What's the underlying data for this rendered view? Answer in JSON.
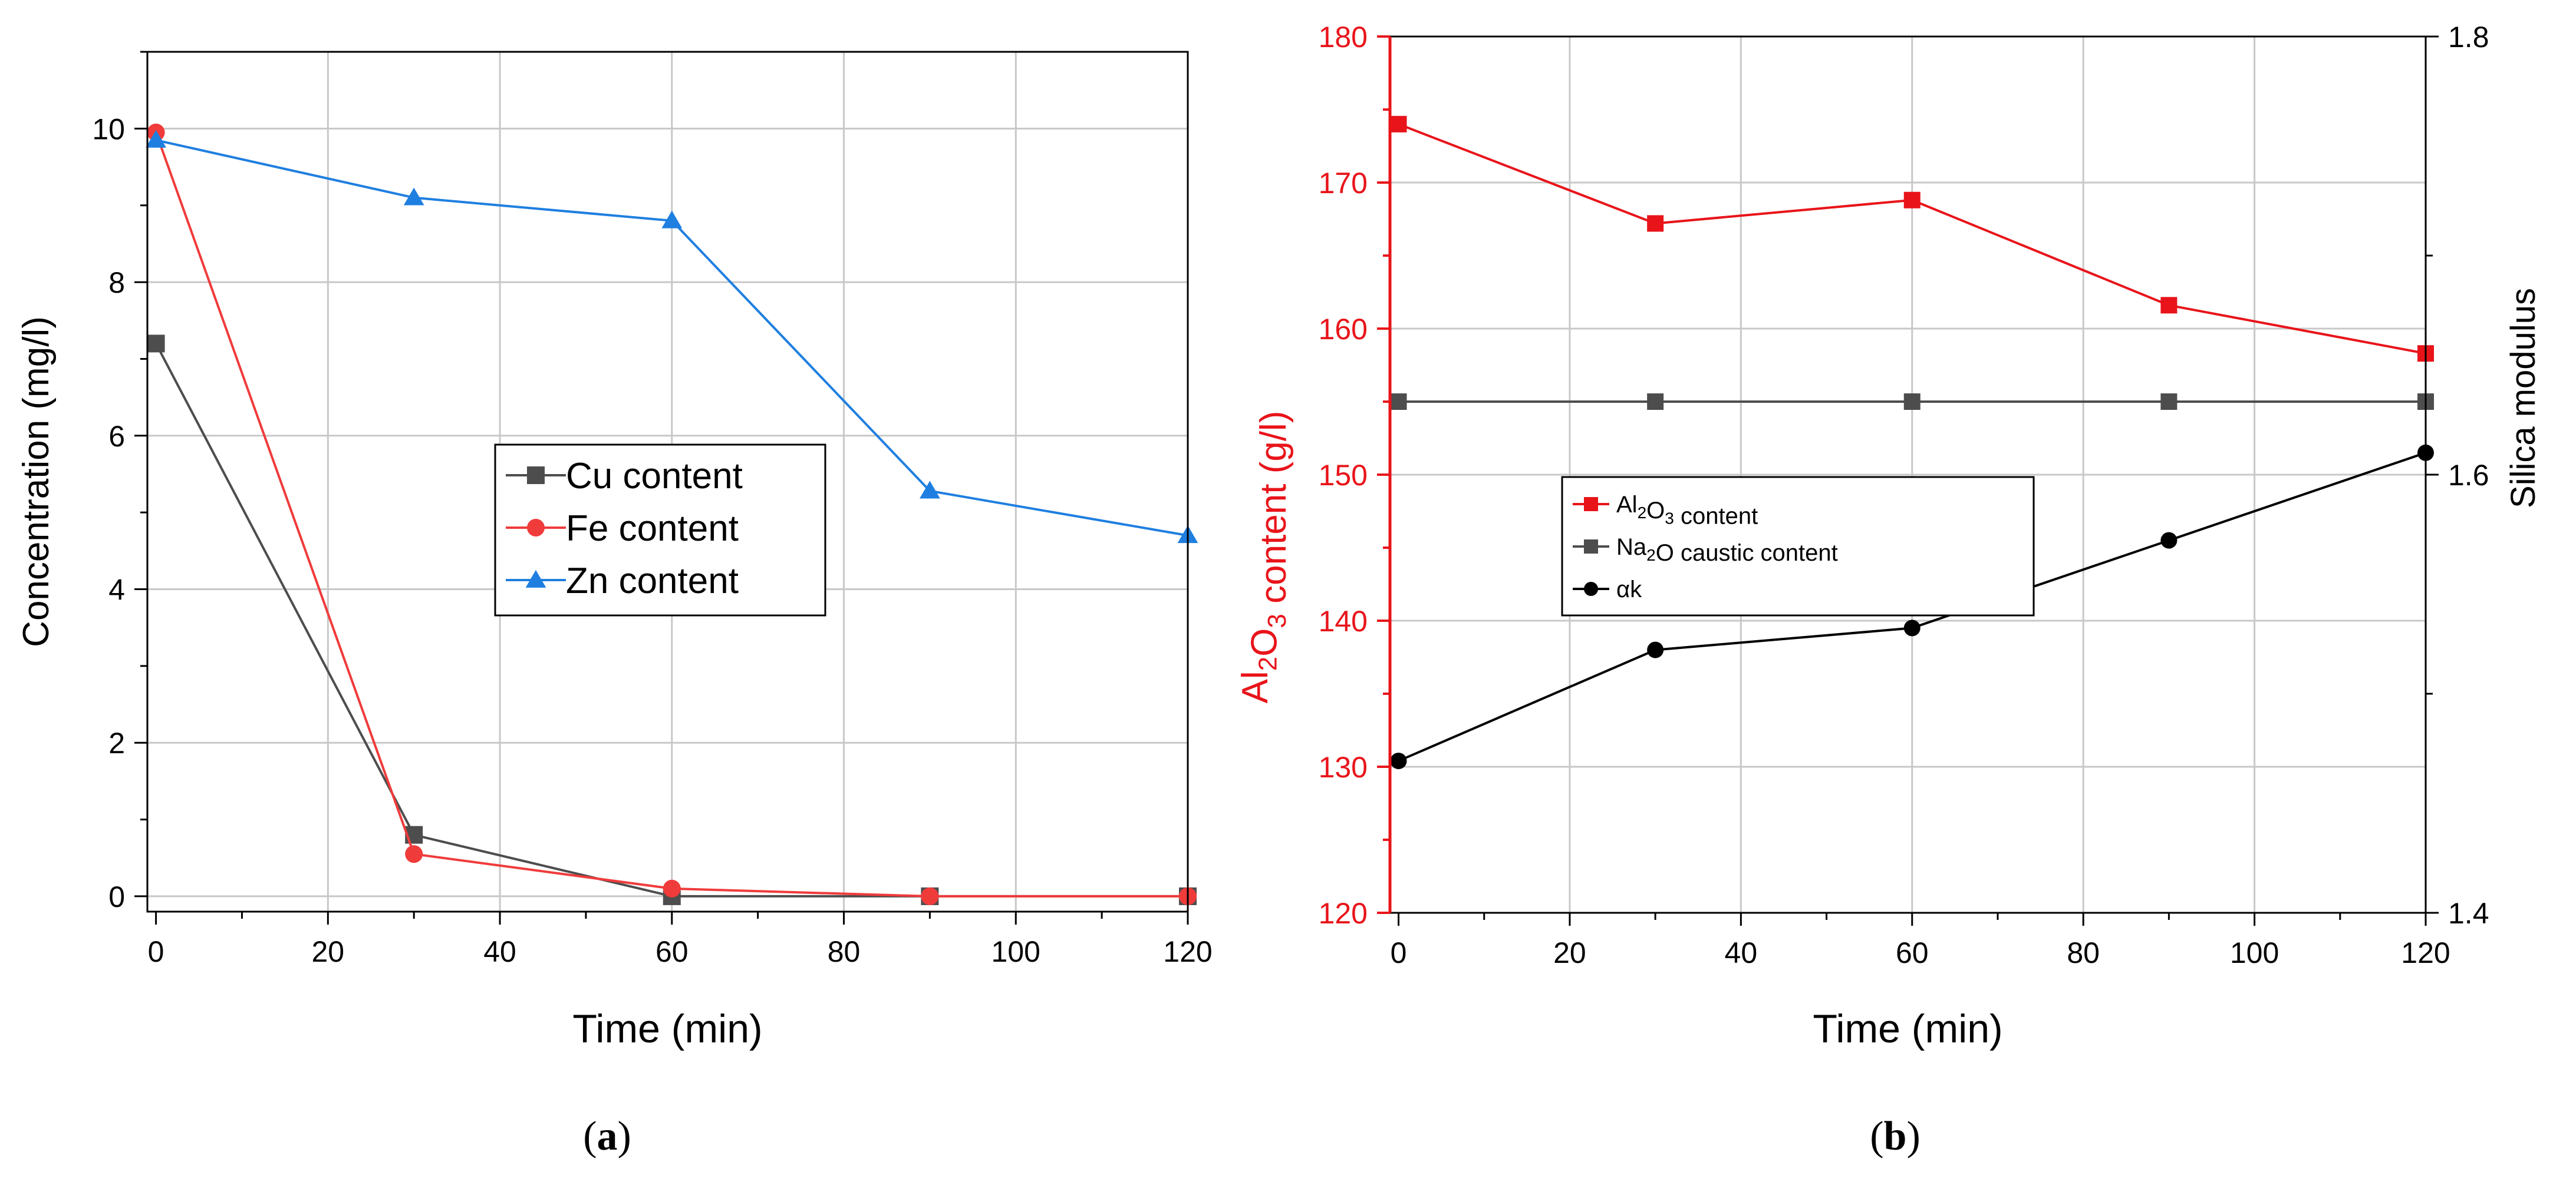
{
  "panel_labels": [
    "a",
    "b"
  ],
  "chart_data": [
    {
      "type": "line",
      "panel": "a",
      "xlabel": "Time (min)",
      "ylabel": "Concentration (mg/l)",
      "xlim": [
        -1,
        120
      ],
      "ylim": [
        -0.2,
        11
      ],
      "xticks": [
        0,
        20,
        40,
        60,
        80,
        100,
        120
      ],
      "yticks": [
        0,
        2,
        4,
        6,
        8,
        10
      ],
      "grid": true,
      "legend_position": "center-right",
      "x": [
        0,
        30,
        60,
        90,
        120
      ],
      "series": [
        {
          "name": "Cu content",
          "values": [
            7.2,
            0.8,
            0.0,
            0.0,
            0.0
          ],
          "color": "#4d4d4d",
          "marker": "square"
        },
        {
          "name": "Fe content",
          "values": [
            9.95,
            0.55,
            0.1,
            0.0,
            0.0
          ],
          "color": "#f03b3b",
          "marker": "circle"
        },
        {
          "name": "Zn content",
          "values": [
            9.85,
            9.1,
            8.8,
            5.28,
            4.7
          ],
          "color": "#1f7fe0",
          "marker": "triangle"
        }
      ]
    },
    {
      "type": "line",
      "panel": "b",
      "xlabel": "Time (min)",
      "ylabel_left": "Al2O3 content (g/l)",
      "ylabel_right": "Silica modulus",
      "xlim": [
        -1,
        120
      ],
      "ylim_left": [
        120,
        180
      ],
      "ylim_right": [
        1.4,
        1.8
      ],
      "xticks": [
        0,
        20,
        40,
        60,
        80,
        100,
        120
      ],
      "yticks_left": [
        120,
        130,
        140,
        150,
        160,
        170,
        180
      ],
      "yticks_right": [
        1.4,
        1.6,
        1.8
      ],
      "grid": true,
      "legend_position": "center-left",
      "x": [
        0,
        30,
        60,
        90,
        120
      ],
      "series": [
        {
          "name": "Al2O3 content",
          "values": [
            174,
            167.2,
            168.8,
            161.6,
            158.3
          ],
          "axis": "left",
          "color": "#e8141a",
          "marker": "square"
        },
        {
          "name": "Na2O caustic content",
          "values": [
            155,
            155,
            155,
            155,
            155
          ],
          "axis": "left",
          "color": "#4d4d4d",
          "marker": "square"
        },
        {
          "name": "αk",
          "values": [
            130.4,
            138,
            139.5,
            145.5,
            151.5
          ],
          "axis": "left",
          "color": "#000000",
          "marker": "circle"
        }
      ],
      "colors": {
        "left_axis": "#e8141a",
        "right_axis": "#000000"
      }
    }
  ]
}
